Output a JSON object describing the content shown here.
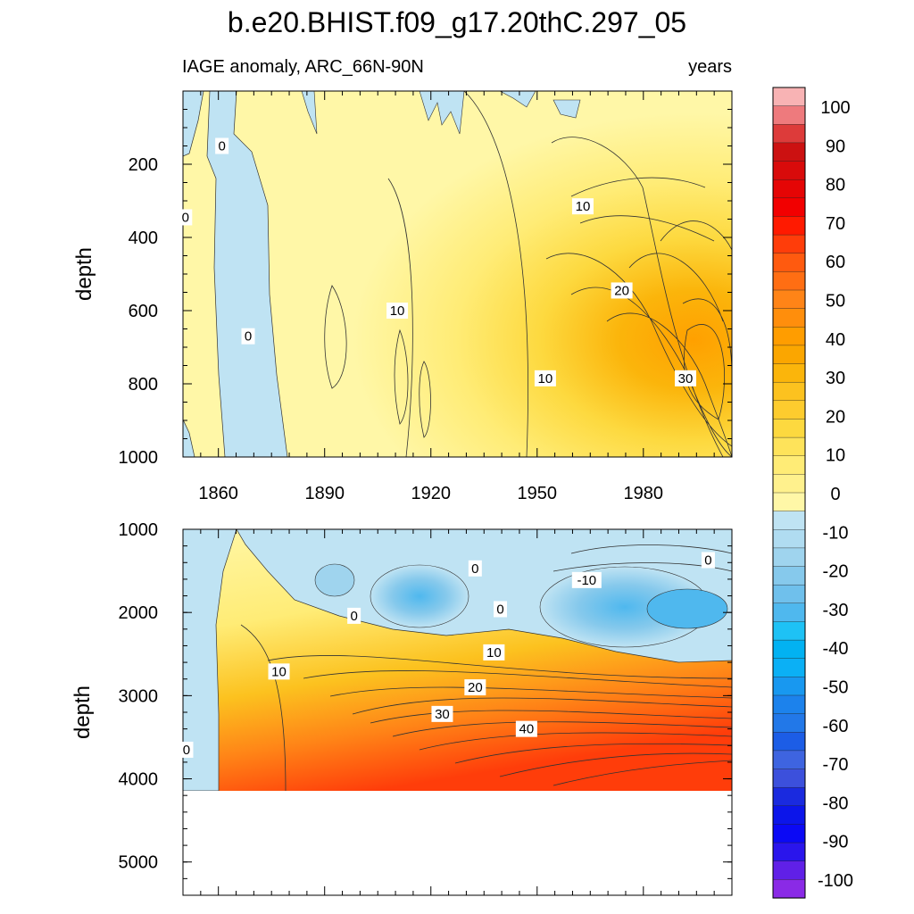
{
  "chart_data": {
    "type": "heatmap",
    "title": "b.e20.BHIST.f09_g17.20thC.297_05",
    "left_subtitle": "IAGE anomaly, ARC_66N-90N",
    "right_subtitle": "years",
    "x_range": [
      1850,
      2005
    ],
    "x_tick_labels": [
      "1860",
      "1890",
      "1920",
      "1950",
      "1980"
    ],
    "upper_panel": {
      "ylabel": "depth",
      "ylim": [
        0,
        1000
      ],
      "y_tick_labels": [
        "200",
        "400",
        "600",
        "800",
        "1000"
      ],
      "contour_labels": [
        {
          "text": "0",
          "x": 1861,
          "y": 150
        },
        {
          "text": "0",
          "x": 1850.7,
          "y": 345
        },
        {
          "text": "0",
          "x": 1868.4,
          "y": 670
        },
        {
          "text": "10",
          "x": 1910.5,
          "y": 600
        },
        {
          "text": "10",
          "x": 1962.9,
          "y": 315
        },
        {
          "text": "10",
          "x": 1952.3,
          "y": 785
        },
        {
          "text": "20",
          "x": 1973.9,
          "y": 545
        },
        {
          "text": "30",
          "x": 1991.9,
          "y": 785
        }
      ]
    },
    "lower_panel": {
      "ylabel": "depth",
      "ylim": [
        1000,
        5400
      ],
      "y_tick_labels": [
        "1000",
        "2000",
        "3000",
        "4000",
        "5000"
      ],
      "data_bottom_depth": 4120,
      "contour_labels": [
        {
          "text": "0",
          "x": 1932.5,
          "y": 1470
        },
        {
          "text": "0",
          "x": 1898.3,
          "y": 2040
        },
        {
          "text": "0",
          "x": 1939.6,
          "y": 1960
        },
        {
          "text": "-10",
          "x": 1964,
          "y": 1610
        },
        {
          "text": "0",
          "x": 1998.3,
          "y": 1370
        },
        {
          "text": "10",
          "x": 1877.1,
          "y": 2710
        },
        {
          "text": "10",
          "x": 1937.8,
          "y": 2480
        },
        {
          "text": "20",
          "x": 1932.5,
          "y": 2900
        },
        {
          "text": "30",
          "x": 1923.2,
          "y": 3220
        },
        {
          "text": "40",
          "x": 1947,
          "y": 3400
        },
        {
          "text": "0",
          "x": 1851,
          "y": 3650
        }
      ]
    },
    "colorbar": {
      "levels": [
        "100",
        "90",
        "80",
        "70",
        "60",
        "50",
        "40",
        "30",
        "20",
        "10",
        "0",
        "-10",
        "-20",
        "-30",
        "-40",
        "-50",
        "-60",
        "-70",
        "-80",
        "-90",
        "-100"
      ],
      "colors": [
        "#f8b3b4",
        "#ee7a7d",
        "#dd3b3a",
        "#cc1111",
        "#d90b0b",
        "#e50505",
        "#f20000",
        "#ff1a00",
        "#ff3d0a",
        "#ff5a0f",
        "#ff6e13",
        "#ff8417",
        "#ff8e0c",
        "#ff9d00",
        "#fba600",
        "#fbb50b",
        "#fcc21f",
        "#fdcc2e",
        "#fdd93f",
        "#fee35a",
        "#ffec76",
        "#fff18d",
        "#fff7a7",
        "#bfe3f3",
        "#b0dcf1",
        "#9fd4ee",
        "#86c9ec",
        "#6fc0ec",
        "#4fb8ee",
        "#1ec2f5",
        "#02b2f2",
        "#0bb0f5",
        "#1898f0",
        "#1c82ec",
        "#2278e8",
        "#1c5de6",
        "#3e64e0",
        "#3c50dc",
        "#1a2adf",
        "#0c15ea",
        "#0b09f5",
        "#2a15ec",
        "#6020e7",
        "#8a2ae6"
      ]
    }
  }
}
